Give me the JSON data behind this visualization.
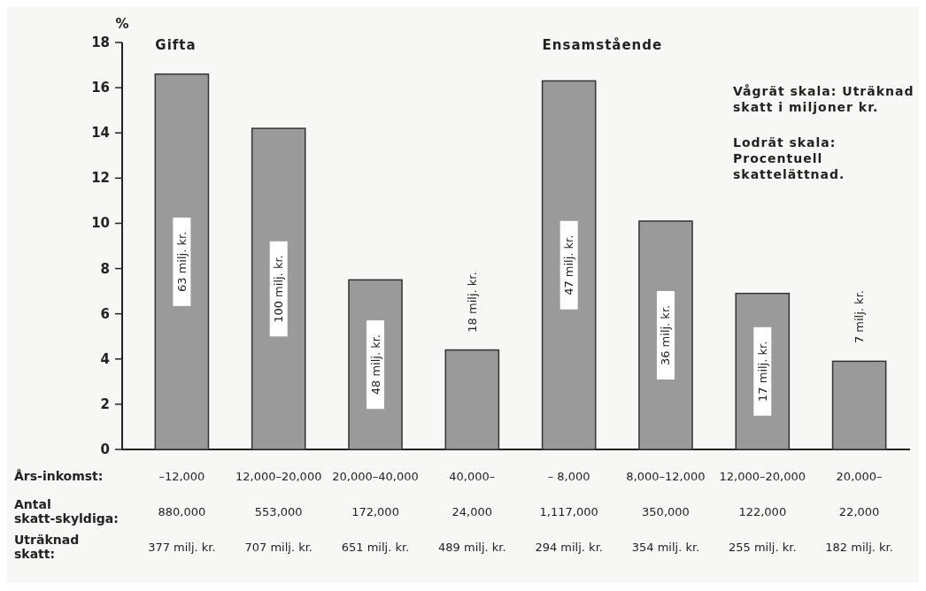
{
  "chart_data": {
    "type": "bar",
    "ylabel": "%",
    "xlabel": "Års-inkomst:",
    "categories": [
      "–12,000",
      "12,000–20,000",
      "20,000–40,000",
      "40,000–",
      "– 8,000",
      "8,000–12,000",
      "12,000–20,000",
      "20,000–"
    ],
    "values": [
      16.6,
      14.2,
      7.5,
      4.4,
      16.3,
      10.1,
      6.9,
      3.9
    ],
    "color": "#9a9a9a",
    "ylim": [
      0,
      18
    ],
    "yticks": [
      0,
      2,
      4,
      6,
      8,
      10,
      12,
      14,
      16,
      18
    ],
    "grid": false,
    "annotations": [
      "Gifta",
      "Ensamstående",
      "Vågrät skala: Uträknad skatt i miljoner kr.",
      "Lodrät skala: Procentuell skattelättnad.",
      "63 milj. kr.",
      "100 milj. kr.",
      "48 milj. kr.",
      "18 milj. kr.",
      "47 milj. kr.",
      "36 milj. kr.",
      "17 milj. kr.",
      "7 milj. kr.",
      "Antal skatt-skyldiga:",
      "880,000",
      "553,000",
      "172,000",
      "24,000",
      "1,117,000",
      "350,000",
      "122,000",
      "22,000",
      "Uträknad skatt:",
      "377 milj. kr.",
      "707 milj. kr.",
      "651 milj. kr.",
      "489 milj. kr.",
      "294 milj. kr.",
      "354 milj. kr.",
      "255 milj. kr.",
      "182 milj. kr."
    ]
  }
}
